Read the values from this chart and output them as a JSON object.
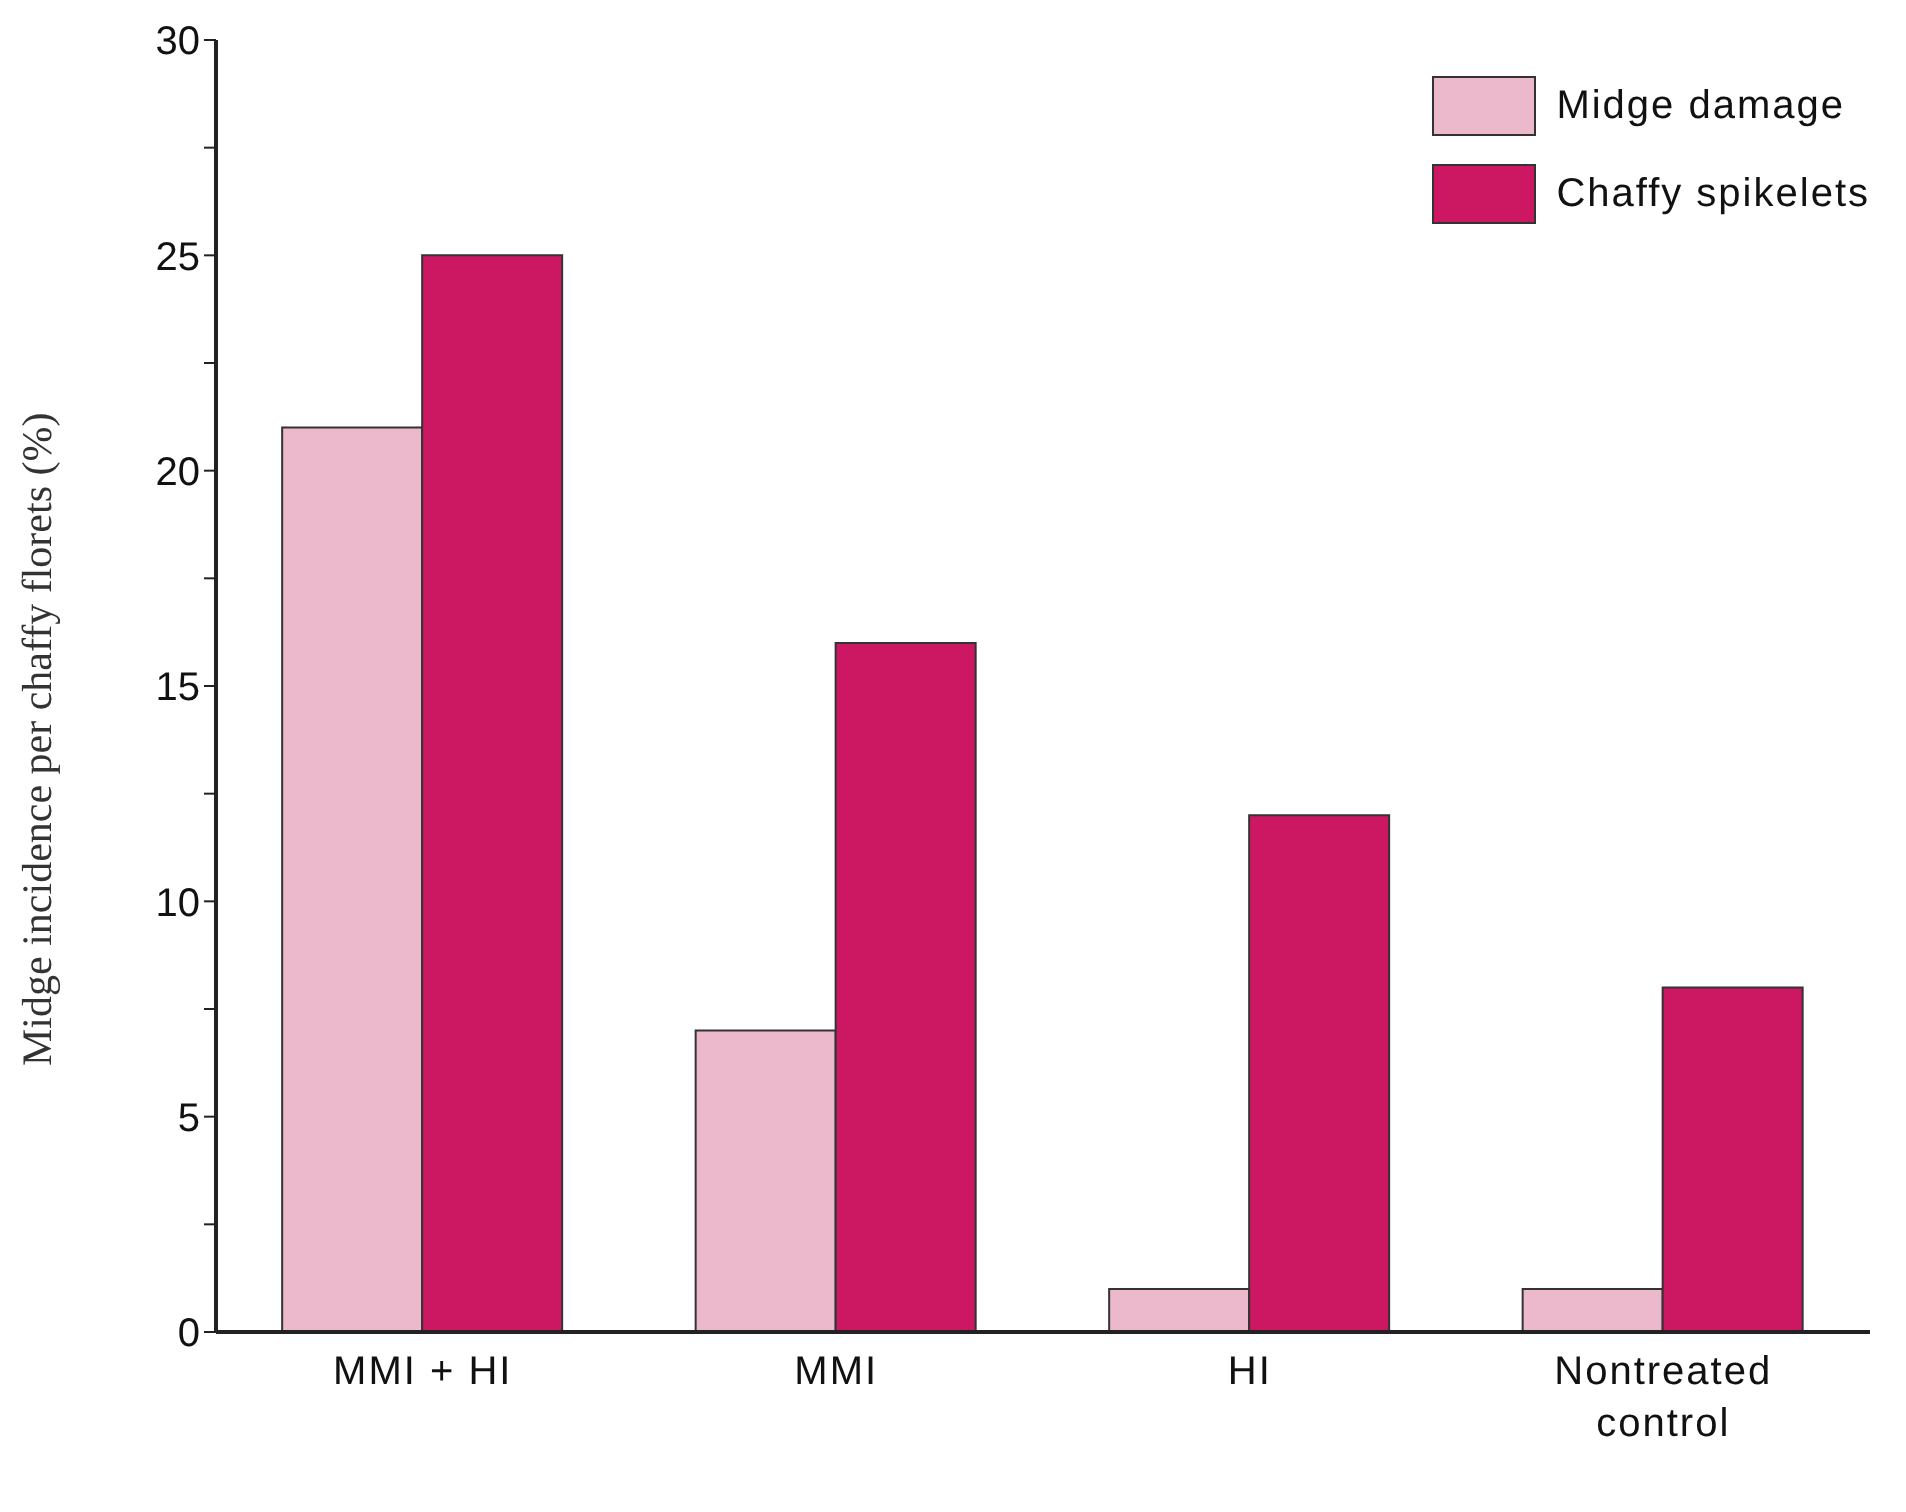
{
  "chart_data": {
    "type": "bar",
    "ylabel": "Midge incidence per chaffy florets (%)",
    "categories": [
      "MMI + HI",
      "MMI",
      "HI",
      "Nontreated control"
    ],
    "series": [
      {
        "name": "Midge damage",
        "color": "#ebb8cc",
        "values": [
          21,
          7,
          1,
          1
        ]
      },
      {
        "name": "Chaffy spikelets",
        "color": "#cc1862",
        "values": [
          25,
          16,
          12,
          8
        ]
      }
    ],
    "ylim": [
      0,
      30
    ],
    "yticks": [
      0,
      {
        "value": 2.5,
        "label": null
      },
      5,
      {
        "value": 7.5,
        "label": null
      },
      10,
      {
        "value": 12.5,
        "label": null
      },
      15,
      {
        "value": 17.5,
        "label": null
      },
      20,
      {
        "value": 22.5,
        "label": null
      },
      25,
      {
        "value": 27.5,
        "label": null
      },
      30
    ],
    "legend": "top right",
    "grid": false
  }
}
